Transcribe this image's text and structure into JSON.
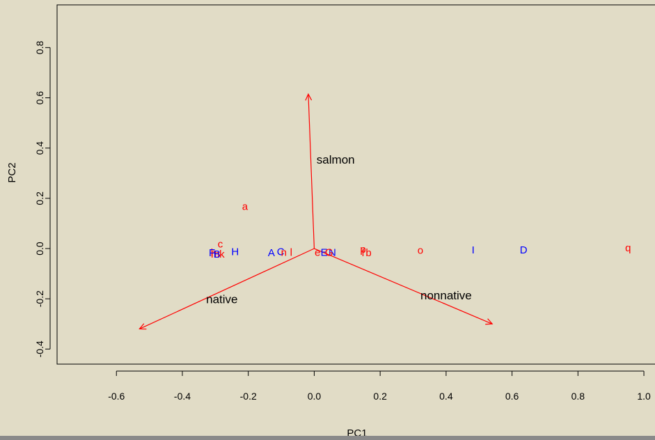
{
  "chart_data": {
    "type": "scatter",
    "title": "",
    "xlabel": "PC1",
    "ylabel": "PC2",
    "xlim": [
      -0.78,
      1.04
    ],
    "ylim": [
      -0.46,
      0.97
    ],
    "x_ticks": [
      -0.6,
      -0.4,
      -0.2,
      0.0,
      0.2,
      0.4,
      0.6,
      0.8,
      1.0
    ],
    "x_tick_labels": [
      "-0.6",
      "-0.4",
      "-0.2",
      "0.0",
      "0.2",
      "0.4",
      "0.6",
      "0.8",
      "1.0"
    ],
    "y_ticks": [
      -0.4,
      -0.2,
      0.0,
      0.2,
      0.4,
      0.6,
      0.8
    ],
    "y_tick_labels": [
      "-0.4",
      "-0.2",
      "0.0",
      "0.2",
      "0.4",
      "0.6",
      "0.8"
    ],
    "grid": false,
    "colors": {
      "red": "#ff0000",
      "blue": "#0000ff",
      "axis": "#000000"
    },
    "points": [
      {
        "label": "a",
        "x": -0.21,
        "y": 0.165,
        "color": "red"
      },
      {
        "label": "c",
        "x": -0.285,
        "y": 0.015,
        "color": "red"
      },
      {
        "label": "h",
        "x": -0.305,
        "y": -0.02,
        "color": "red"
      },
      {
        "label": "m",
        "x": -0.3,
        "y": -0.025,
        "color": "red"
      },
      {
        "label": "k",
        "x": -0.28,
        "y": -0.025,
        "color": "red"
      },
      {
        "label": "F",
        "x": -0.31,
        "y": -0.02,
        "color": "blue"
      },
      {
        "label": "B",
        "x": -0.295,
        "y": -0.025,
        "color": "blue"
      },
      {
        "label": "H",
        "x": -0.24,
        "y": -0.015,
        "color": "blue"
      },
      {
        "label": "A",
        "x": -0.13,
        "y": -0.02,
        "color": "blue"
      },
      {
        "label": "C",
        "x": -0.102,
        "y": -0.015,
        "color": "blue"
      },
      {
        "label": "n",
        "x": -0.092,
        "y": -0.018,
        "color": "red"
      },
      {
        "label": "l",
        "x": -0.07,
        "y": -0.018,
        "color": "red"
      },
      {
        "label": "e",
        "x": 0.01,
        "y": -0.018,
        "color": "red"
      },
      {
        "label": "E",
        "x": 0.03,
        "y": -0.018,
        "color": "blue"
      },
      {
        "label": "N",
        "x": 0.055,
        "y": -0.018,
        "color": "blue"
      },
      {
        "label": "G",
        "x": 0.045,
        "y": -0.018,
        "color": "red"
      },
      {
        "label": "p",
        "x": 0.148,
        "y": -0.005,
        "color": "red"
      },
      {
        "label": "f",
        "x": 0.148,
        "y": -0.02,
        "color": "red"
      },
      {
        "label": "b",
        "x": 0.165,
        "y": -0.02,
        "color": "red"
      },
      {
        "label": "o",
        "x": 0.322,
        "y": -0.01,
        "color": "red"
      },
      {
        "label": "I",
        "x": 0.482,
        "y": -0.008,
        "color": "blue"
      },
      {
        "label": "D",
        "x": 0.635,
        "y": -0.008,
        "color": "blue"
      },
      {
        "label": "q",
        "x": 0.952,
        "y": 0.0,
        "color": "red"
      }
    ],
    "arrows": [
      {
        "label": "salmon",
        "x": -0.018,
        "y": 0.615,
        "label_x": 0.065,
        "label_y": 0.35
      },
      {
        "label": "native",
        "x": -0.53,
        "y": -0.32,
        "label_x": -0.28,
        "label_y": -0.205
      },
      {
        "label": "nonnative",
        "x": 0.54,
        "y": -0.3,
        "label_x": 0.4,
        "label_y": -0.19
      }
    ]
  }
}
